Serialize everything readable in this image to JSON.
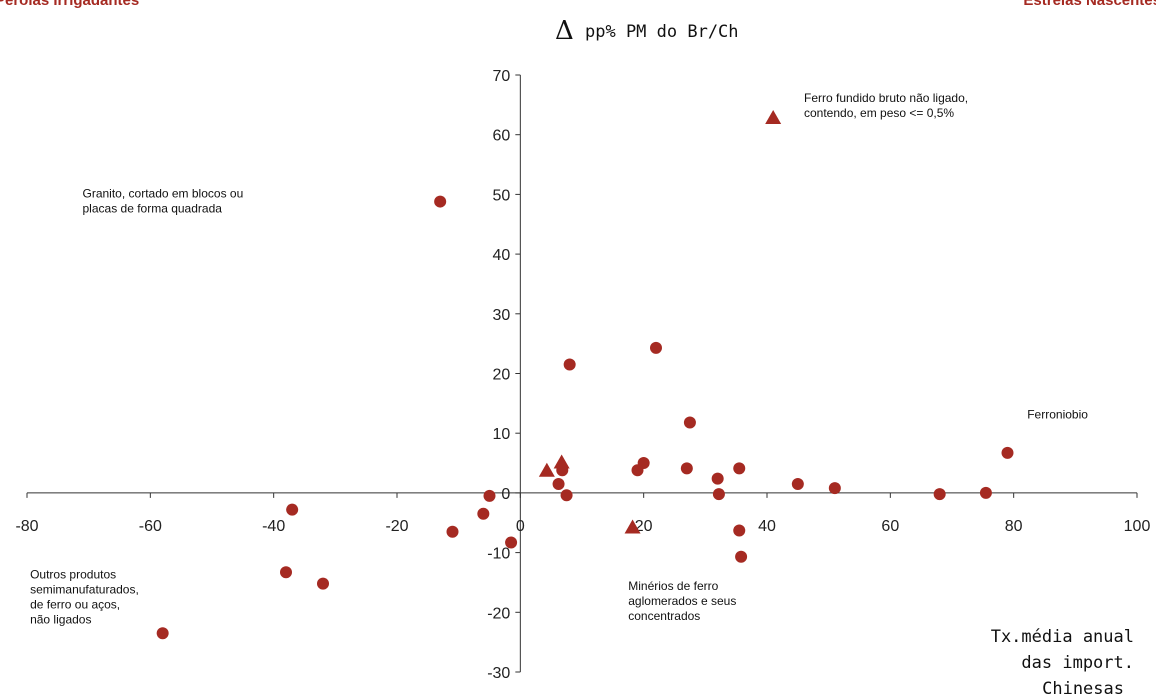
{
  "header": {
    "left_label": "Pérolas Irrigadantes",
    "right_label": "Estrelas Nascentes"
  },
  "chart_data": {
    "type": "scatter",
    "ylabel_symbol": "Δ",
    "ylabel": "pp% PM do Br/Ch",
    "xlabel_lines": [
      "Tx.média anual",
      "das import.",
      "Chinesas"
    ],
    "xlim": [
      -80,
      100
    ],
    "ylim": [
      -30,
      70
    ],
    "x_ticks": [
      -80,
      -60,
      -40,
      -20,
      0,
      20,
      40,
      60,
      80,
      100
    ],
    "y_ticks": [
      -30,
      -20,
      -10,
      0,
      10,
      20,
      30,
      40,
      50,
      60,
      70
    ],
    "marker_color": "#a52a22",
    "series": [
      {
        "marker": "circle",
        "points": [
          {
            "x": -13,
            "y": 48.8
          },
          {
            "x": 8,
            "y": 21.5
          },
          {
            "x": 22,
            "y": 24.3
          },
          {
            "x": 27.5,
            "y": 11.8
          },
          {
            "x": 79,
            "y": 6.7
          },
          {
            "x": 20,
            "y": 5
          },
          {
            "x": 19,
            "y": 3.8
          },
          {
            "x": 6.8,
            "y": 3.8
          },
          {
            "x": 27,
            "y": 4.1
          },
          {
            "x": 35.5,
            "y": 4.1
          },
          {
            "x": 32,
            "y": 2.4
          },
          {
            "x": 6.2,
            "y": 1.5
          },
          {
            "x": 45,
            "y": 1.5
          },
          {
            "x": 51,
            "y": 0.8
          },
          {
            "x": 32.2,
            "y": -0.2
          },
          {
            "x": 68,
            "y": -0.2
          },
          {
            "x": 75.5,
            "y": 0
          },
          {
            "x": 7.5,
            "y": -0.4
          },
          {
            "x": -5,
            "y": -0.5
          },
          {
            "x": -37,
            "y": -2.8
          },
          {
            "x": -6,
            "y": -3.5
          },
          {
            "x": -11,
            "y": -6.5
          },
          {
            "x": 35.5,
            "y": -6.3
          },
          {
            "x": -1.5,
            "y": -8.3
          },
          {
            "x": 35.8,
            "y": -10.7
          },
          {
            "x": -38,
            "y": -13.3
          },
          {
            "x": -32,
            "y": -15.2
          },
          {
            "x": -58,
            "y": -23.5
          }
        ]
      },
      {
        "marker": "triangle",
        "points": [
          {
            "x": 41,
            "y": 62.8
          },
          {
            "x": 4.3,
            "y": 3.7
          },
          {
            "x": 6.7,
            "y": 5.1
          },
          {
            "x": 18.2,
            "y": -5.8
          }
        ]
      }
    ],
    "annotations": [
      {
        "id": "ferro-fundido",
        "lines": [
          "Ferro fundido bruto não ligado,",
          "contendo, em peso <= 0,5%"
        ],
        "x": 46,
        "y": 65.5
      },
      {
        "id": "granito",
        "lines": [
          "Granito, cortado em blocos ou",
          "placas de forma quadrada"
        ],
        "x": -71,
        "y": 49.5
      },
      {
        "id": "ferroniobio",
        "lines": [
          "Ferroniobio"
        ],
        "x": 82.2,
        "y": 12.5
      },
      {
        "id": "outros",
        "lines": [
          "Outros produtos",
          "semimanufaturados,",
          "de ferro ou aços,",
          "não ligados"
        ],
        "x": -79.5,
        "y": -14.3
      },
      {
        "id": "minerios",
        "lines": [
          "Minérios de ferro",
          "aglomerados e seus",
          "concentrados"
        ],
        "x": 17.5,
        "y": -16.3
      }
    ]
  }
}
